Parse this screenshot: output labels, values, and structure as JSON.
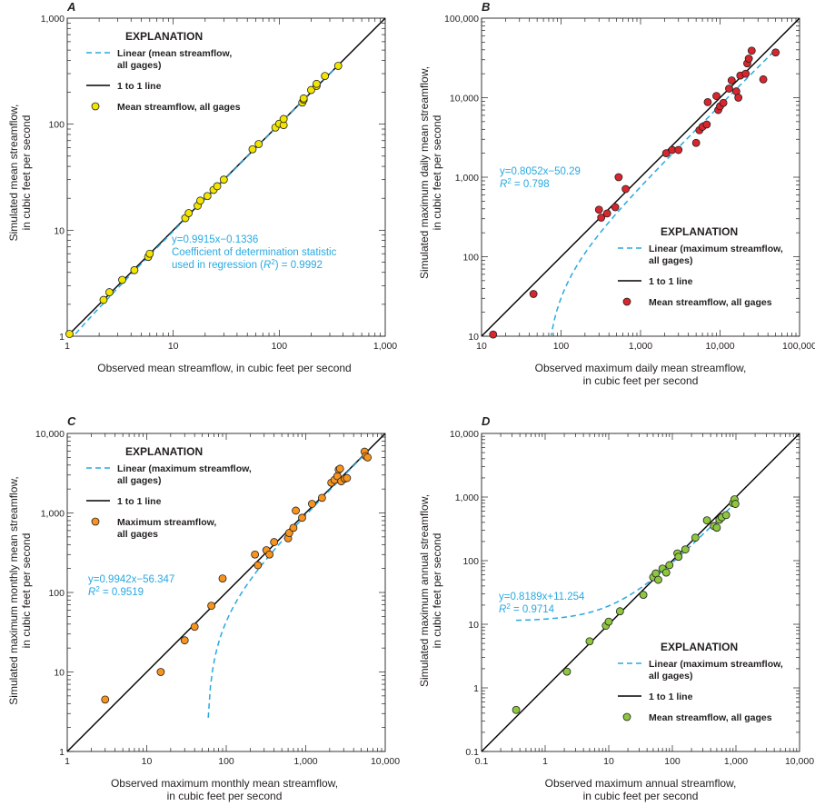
{
  "chart_data": [
    {
      "type": "scatter",
      "panel_label": "A",
      "xscale": "log",
      "yscale": "log",
      "xlim": [
        1,
        1000
      ],
      "ylim": [
        1,
        1000
      ],
      "xticks": [
        {
          "v": 1,
          "label": "1"
        },
        {
          "v": 10,
          "label": "10"
        },
        {
          "v": 100,
          "label": "100"
        },
        {
          "v": 1000,
          "label": "1,000"
        }
      ],
      "yticks": [
        {
          "v": 1,
          "label": "1"
        },
        {
          "v": 10,
          "label": "10"
        },
        {
          "v": 100,
          "label": "100"
        },
        {
          "v": 1000,
          "label": "1,000"
        }
      ],
      "xlabel": [
        "Observed mean streamflow, in cubic feet per second"
      ],
      "ylabel": [
        "Simulated mean streamflow,",
        "in cubic feet per second"
      ],
      "legend": {
        "title": "EXPLANATION",
        "regression_label": [
          "Linear (mean streamflow,",
          "all gages)"
        ],
        "one_to_one_label": [
          "1 to 1 line"
        ],
        "points_label": [
          "Mean streamflow, all gages"
        ]
      },
      "annotation": [
        "y=0.9915x−0.1336",
        "Coefficient of determination statistic",
        "used in regression (R²) = 0.9992"
      ],
      "regression": {
        "slope": 0.9915,
        "intercept": -0.1336
      },
      "point_color": "#f2e600",
      "points": [
        [
          1.05,
          1.05
        ],
        [
          2.2,
          2.2
        ],
        [
          2.5,
          2.6
        ],
        [
          3.3,
          3.4
        ],
        [
          4.3,
          4.2
        ],
        [
          5.8,
          5.6
        ],
        [
          6,
          6
        ],
        [
          13,
          13
        ],
        [
          14,
          14.5
        ],
        [
          17,
          17
        ],
        [
          18,
          19
        ],
        [
          21,
          21
        ],
        [
          24,
          24
        ],
        [
          26,
          26
        ],
        [
          30,
          30
        ],
        [
          56,
          58
        ],
        [
          64,
          65
        ],
        [
          92,
          93
        ],
        [
          100,
          101
        ],
        [
          110,
          98
        ],
        [
          110,
          112
        ],
        [
          165,
          160
        ],
        [
          170,
          170
        ],
        [
          170,
          175
        ],
        [
          200,
          210
        ],
        [
          225,
          230
        ],
        [
          225,
          240
        ],
        [
          270,
          285
        ],
        [
          360,
          355
        ]
      ]
    },
    {
      "type": "scatter",
      "panel_label": "B",
      "xscale": "log",
      "yscale": "log",
      "xlim": [
        10,
        100000
      ],
      "ylim": [
        10,
        100000
      ],
      "xticks": [
        {
          "v": 10,
          "label": "10"
        },
        {
          "v": 100,
          "label": "100"
        },
        {
          "v": 1000,
          "label": "1,000"
        },
        {
          "v": 10000,
          "label": "10,000"
        },
        {
          "v": 100000,
          "label": "100,000"
        }
      ],
      "yticks": [
        {
          "v": 10,
          "label": "10"
        },
        {
          "v": 100,
          "label": "100"
        },
        {
          "v": 1000,
          "label": "1,000"
        },
        {
          "v": 10000,
          "label": "10,000"
        },
        {
          "v": 100000,
          "label": "100,000"
        }
      ],
      "xlabel": [
        "Observed maximum daily mean streamflow,",
        "in cubic feet per second"
      ],
      "ylabel": [
        "Simulated maximum daily mean streamflow,",
        "in cubic feet per second"
      ],
      "legend": {
        "title": "EXPLANATION",
        "regression_label": [
          "Linear (maximum streamflow,",
          "all gages)"
        ],
        "one_to_one_label": [
          "1 to 1 line"
        ],
        "points_label": [
          "Mean streamflow, all gages"
        ]
      },
      "annotation": [
        "y=0.8052x−50.29",
        "R² = 0.798"
      ],
      "regression": {
        "slope": 0.8052,
        "intercept": -50.29
      },
      "point_color": "#d7262d",
      "points": [
        [
          14,
          10.5
        ],
        [
          45,
          34
        ],
        [
          300,
          390
        ],
        [
          320,
          310
        ],
        [
          380,
          350
        ],
        [
          480,
          420
        ],
        [
          530,
          1000
        ],
        [
          650,
          710
        ],
        [
          2100,
          2000
        ],
        [
          2500,
          2200
        ],
        [
          3000,
          2200
        ],
        [
          5000,
          2700
        ],
        [
          5500,
          3900
        ],
        [
          6000,
          4300
        ],
        [
          6800,
          4600
        ],
        [
          7000,
          8800
        ],
        [
          9000,
          10500
        ],
        [
          9500,
          7000
        ],
        [
          10000,
          7800
        ],
        [
          11000,
          8600
        ],
        [
          13000,
          13000
        ],
        [
          14000,
          16500
        ],
        [
          16000,
          12000
        ],
        [
          17000,
          10000
        ],
        [
          18000,
          19000
        ],
        [
          21000,
          20000
        ],
        [
          22000,
          27000
        ],
        [
          23000,
          31000
        ],
        [
          25000,
          39000
        ],
        [
          35000,
          17000
        ],
        [
          50000,
          37000
        ]
      ]
    },
    {
      "type": "scatter",
      "panel_label": "C",
      "xscale": "log",
      "yscale": "log",
      "xlim": [
        1,
        10000
      ],
      "ylim": [
        1,
        10000
      ],
      "xticks": [
        {
          "v": 1,
          "label": "1"
        },
        {
          "v": 10,
          "label": "10"
        },
        {
          "v": 100,
          "label": "100"
        },
        {
          "v": 1000,
          "label": "1,000"
        },
        {
          "v": 10000,
          "label": "10,000"
        }
      ],
      "yticks": [
        {
          "v": 1,
          "label": "1"
        },
        {
          "v": 10,
          "label": "10"
        },
        {
          "v": 100,
          "label": "100"
        },
        {
          "v": 1000,
          "label": "1,000"
        },
        {
          "v": 10000,
          "label": "10,000"
        }
      ],
      "xlabel": [
        "Observed maximum monthly mean streamflow,",
        "in cubic feet per second"
      ],
      "ylabel": [
        "Simulated maximum monthly mean streamflow,",
        "in cubic feet per second"
      ],
      "legend": {
        "title": "EXPLANATION",
        "regression_label": [
          "Linear (maximum streamflow,",
          "all gages)"
        ],
        "one_to_one_label": [
          "1 to 1 line"
        ],
        "points_label": [
          "Maximum streamflow,",
          "all gages"
        ]
      },
      "annotation": [
        "y=0.9942x−56.347",
        "R² = 0.9519"
      ],
      "regression": {
        "slope": 0.9942,
        "intercept": -56.347
      },
      "point_color": "#f7941d",
      "points": [
        [
          3,
          4.5
        ],
        [
          15,
          10
        ],
        [
          30,
          25
        ],
        [
          40,
          37
        ],
        [
          65,
          68
        ],
        [
          90,
          150
        ],
        [
          230,
          300
        ],
        [
          250,
          220
        ],
        [
          320,
          340
        ],
        [
          350,
          300
        ],
        [
          400,
          430
        ],
        [
          600,
          480
        ],
        [
          620,
          560
        ],
        [
          700,
          650
        ],
        [
          750,
          1070
        ],
        [
          900,
          870
        ],
        [
          1200,
          1300
        ],
        [
          1600,
          1550
        ],
        [
          2100,
          2400
        ],
        [
          2300,
          2600
        ],
        [
          2500,
          2900
        ],
        [
          2600,
          3500
        ],
        [
          2700,
          3600
        ],
        [
          2800,
          2500
        ],
        [
          3100,
          2700
        ],
        [
          3300,
          2750
        ],
        [
          5500,
          5900
        ],
        [
          5700,
          5200
        ],
        [
          6000,
          5000
        ]
      ]
    },
    {
      "type": "scatter",
      "panel_label": "D",
      "xscale": "log",
      "yscale": "log",
      "xlim": [
        0.1,
        10000
      ],
      "ylim": [
        0.1,
        10000
      ],
      "xticks": [
        {
          "v": 0.1,
          "label": "0.1"
        },
        {
          "v": 1,
          "label": "1"
        },
        {
          "v": 10,
          "label": "10"
        },
        {
          "v": 100,
          "label": "100"
        },
        {
          "v": 1000,
          "label": "1,000"
        },
        {
          "v": 10000,
          "label": "10,000"
        }
      ],
      "yticks": [
        {
          "v": 0.1,
          "label": "0.1"
        },
        {
          "v": 1,
          "label": "1"
        },
        {
          "v": 10,
          "label": "10"
        },
        {
          "v": 100,
          "label": "100"
        },
        {
          "v": 1000,
          "label": "1,000"
        },
        {
          "v": 10000,
          "label": "10,000"
        }
      ],
      "xlabel": [
        "Observed maximum annual streamflow,",
        "in cubic feet per second"
      ],
      "ylabel": [
        "Simulated maximum annual streamflow,",
        "in cubic feet per second"
      ],
      "legend": {
        "title": "EXPLANATION",
        "regression_label": [
          "Linear (maximum streamflow,",
          "all gages)"
        ],
        "one_to_one_label": [
          "1 to 1 line"
        ],
        "points_label": [
          "Mean streamflow, all gages"
        ]
      },
      "annotation": [
        "y=0.8189x+11.254",
        "R² = 0.9714"
      ],
      "regression": {
        "slope": 0.8189,
        "intercept": 11.254
      },
      "point_color": "#8dc63f",
      "points": [
        [
          0.35,
          0.45
        ],
        [
          2.2,
          1.8
        ],
        [
          5,
          5.4
        ],
        [
          9,
          9.5
        ],
        [
          10,
          11
        ],
        [
          15,
          16
        ],
        [
          35,
          29
        ],
        [
          50,
          55
        ],
        [
          55,
          63
        ],
        [
          60,
          50
        ],
        [
          70,
          75
        ],
        [
          80,
          65
        ],
        [
          90,
          85
        ],
        [
          120,
          130
        ],
        [
          125,
          115
        ],
        [
          160,
          150
        ],
        [
          230,
          230
        ],
        [
          350,
          430
        ],
        [
          450,
          350
        ],
        [
          500,
          330
        ],
        [
          550,
          440
        ],
        [
          600,
          480
        ],
        [
          700,
          520
        ],
        [
          900,
          800
        ],
        [
          950,
          920
        ],
        [
          980,
          780
        ]
      ]
    }
  ]
}
